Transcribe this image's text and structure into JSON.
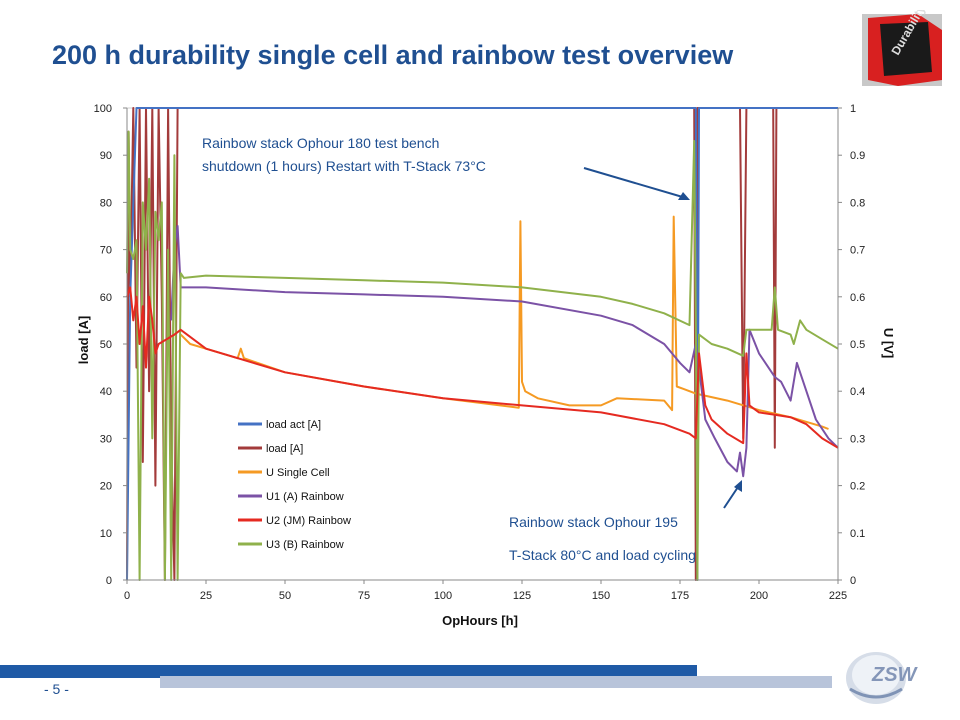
{
  "slide": {
    "title": "200 h durability single cell and rainbow test overview",
    "page": "- 5 -",
    "logo_text": "Durability",
    "brand_logo_text": "ZSW"
  },
  "colors": {
    "title": "#1f4f91",
    "footer_dark": "#1f5aa6",
    "footer_light": "#b8c4da"
  },
  "chart_data": {
    "type": "line",
    "xlabel": "OpHours [h]",
    "ylabel_left": "load [A]",
    "ylabel_right": "U [V]",
    "xlim": [
      0,
      225
    ],
    "ylim_left": [
      0,
      100
    ],
    "ylim_right": [
      0,
      1
    ],
    "x_ticks": [
      "0",
      "25",
      "50",
      "75",
      "100",
      "125",
      "150",
      "175",
      "200",
      "225"
    ],
    "y_left_ticks": [
      "0",
      "10",
      "20",
      "30",
      "40",
      "50",
      "60",
      "70",
      "80",
      "90",
      "100"
    ],
    "y_right_ticks": [
      "0",
      "0.1",
      "0.2",
      "0.3",
      "0.4",
      "0.5",
      "0.6",
      "0.7",
      "0.8",
      "0.9",
      "1"
    ],
    "grid": false,
    "legend_position": "lower-left inside",
    "annotations": [
      {
        "lines": [
          "Rainbow stack Ophour 180 test bench",
          "shutdown (1 hours) Restart with T-Stack 73°C"
        ],
        "points_to": [
          180,
          0.81
        ]
      },
      {
        "lines": [
          "Rainbow stack Ophour 195",
          "T-Stack 80°C and load cycling"
        ],
        "points_to": [
          193,
          0.21
        ]
      }
    ],
    "series": [
      {
        "name": "load act [A]",
        "axis": "left",
        "color": "#4472c4",
        "x": [
          0,
          1,
          3,
          5,
          8,
          12,
          16,
          17,
          180,
          180.5,
          181,
          195,
          196,
          205,
          206,
          225
        ],
        "y": [
          0,
          60,
          100,
          100,
          100,
          100,
          100,
          100,
          100,
          0,
          100,
          100,
          100,
          100,
          100,
          100
        ]
      },
      {
        "name": "load [A]",
        "axis": "left",
        "color": "#a33b3b",
        "x": [
          0,
          0.5,
          1,
          2,
          3,
          4,
          5,
          6,
          7,
          8,
          9,
          10,
          11,
          12,
          13,
          14,
          15,
          16,
          17,
          100,
          179.5,
          180,
          180.5,
          181,
          181.5,
          194,
          195,
          196,
          204.5,
          205,
          205.5,
          225
        ],
        "y": [
          0,
          95,
          60,
          100,
          45,
          100,
          25,
          100,
          40,
          100,
          20,
          100,
          60,
          0,
          100,
          30,
          0,
          100,
          100,
          100,
          100,
          0,
          100,
          100,
          100,
          100,
          30,
          100,
          100,
          28,
          100,
          100
        ]
      },
      {
        "name": "U Single Cell",
        "axis": "right",
        "color": "#f59a23",
        "x": [
          17,
          20,
          25,
          30,
          35,
          36,
          37,
          50,
          75,
          100,
          124,
          124.5,
          125,
          126,
          130,
          140,
          150,
          155,
          170,
          172.5,
          173,
          174,
          176,
          180,
          190,
          200,
          210,
          220,
          222
        ],
        "y": [
          0.52,
          0.5,
          0.49,
          0.48,
          0.47,
          0.49,
          0.47,
          0.44,
          0.41,
          0.385,
          0.365,
          0.76,
          0.42,
          0.4,
          0.385,
          0.37,
          0.37,
          0.385,
          0.38,
          0.36,
          0.77,
          0.41,
          0.405,
          0.395,
          0.38,
          0.36,
          0.345,
          0.325,
          0.32
        ]
      },
      {
        "name": "U1 (A) Rainbow",
        "axis": "right",
        "color": "#7b52a6",
        "x": [
          14,
          15,
          16,
          17,
          25,
          50,
          75,
          100,
          125,
          150,
          160,
          170,
          175,
          178,
          180,
          181,
          183,
          186,
          190,
          193,
          194,
          195,
          196,
          197,
          200,
          203,
          205,
          207,
          210,
          212,
          215,
          218,
          222,
          225
        ],
        "y": [
          0.55,
          0.7,
          0.75,
          0.62,
          0.62,
          0.61,
          0.605,
          0.6,
          0.59,
          0.56,
          0.54,
          0.5,
          0.46,
          0.44,
          0.5,
          0.45,
          0.34,
          0.3,
          0.25,
          0.23,
          0.27,
          0.22,
          0.28,
          0.53,
          0.48,
          0.45,
          0.43,
          0.42,
          0.38,
          0.46,
          0.4,
          0.34,
          0.3,
          0.28
        ]
      },
      {
        "name": "U2 (JM) Rainbow",
        "axis": "right",
        "color": "#e52a21",
        "x": [
          0,
          1,
          2,
          3,
          4,
          5,
          6,
          7,
          8,
          9,
          10,
          15,
          17,
          25,
          50,
          75,
          100,
          125,
          150,
          170,
          178,
          180,
          181,
          183,
          185,
          190,
          195,
          196,
          197,
          200,
          205,
          210,
          215,
          220,
          225
        ],
        "y": [
          0.6,
          0.62,
          0.55,
          0.6,
          0.5,
          0.58,
          0.45,
          0.6,
          0.55,
          0.48,
          0.5,
          0.52,
          0.53,
          0.49,
          0.44,
          0.41,
          0.385,
          0.37,
          0.355,
          0.33,
          0.31,
          0.3,
          0.48,
          0.37,
          0.34,
          0.31,
          0.29,
          0.48,
          0.37,
          0.355,
          0.35,
          0.345,
          0.33,
          0.3,
          0.28
        ]
      },
      {
        "name": "U3 (B) Rainbow",
        "axis": "right",
        "color": "#8fb14b",
        "x": [
          0,
          0.5,
          1,
          2,
          3,
          4,
          5,
          6,
          7,
          8,
          9,
          10,
          11,
          12,
          13,
          14,
          15,
          16,
          17,
          18,
          25,
          50,
          75,
          100,
          125,
          150,
          160,
          170,
          178,
          179.5,
          180,
          180.5,
          181,
          185,
          190,
          195,
          196,
          200,
          204,
          205,
          206,
          210,
          211,
          213,
          215,
          220,
          225
        ],
        "y": [
          0.65,
          0.95,
          0.7,
          0.68,
          0.72,
          0.0,
          0.8,
          0.7,
          0.85,
          0.3,
          0.78,
          0.72,
          0.8,
          0.0,
          0.7,
          0.0,
          0.9,
          0.0,
          0.65,
          0.64,
          0.645,
          0.64,
          0.635,
          0.63,
          0.62,
          0.6,
          0.585,
          0.565,
          0.54,
          0.93,
          0.55,
          0.0,
          0.52,
          0.5,
          0.49,
          0.475,
          0.53,
          0.53,
          0.53,
          0.62,
          0.53,
          0.52,
          0.5,
          0.55,
          0.53,
          0.51,
          0.49
        ]
      }
    ]
  }
}
